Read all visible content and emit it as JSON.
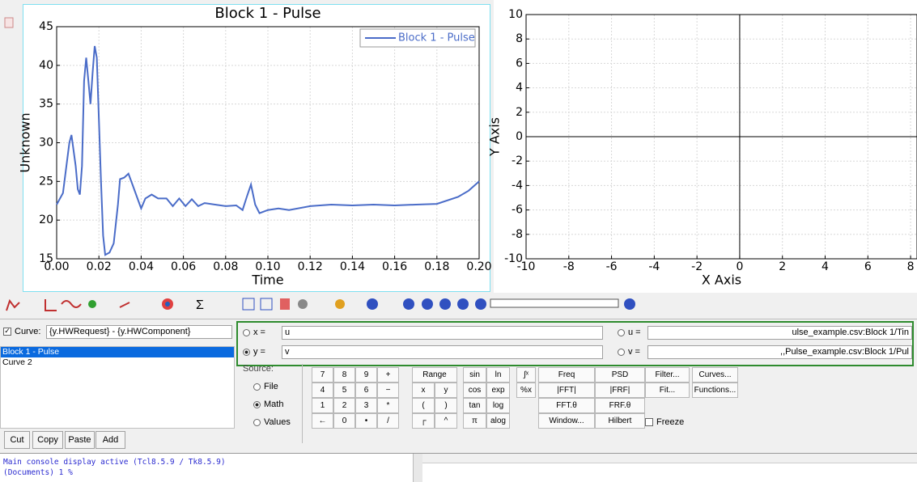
{
  "charts": [
    {
      "type": "line",
      "title": "Block 1 - Pulse",
      "x_label": "Time",
      "y_label": "Unknown",
      "x": [
        0,
        0.003,
        0.006,
        0.007,
        0.009,
        0.01,
        0.011,
        0.012,
        0.013,
        0.014,
        0.015,
        0.016,
        0.017,
        0.018,
        0.019,
        0.02,
        0.021,
        0.022,
        0.023,
        0.025,
        0.027,
        0.029,
        0.03,
        0.032,
        0.034,
        0.036,
        0.038,
        0.04,
        0.042,
        0.045,
        0.048,
        0.052,
        0.055,
        0.058,
        0.061,
        0.064,
        0.067,
        0.07,
        0.075,
        0.08,
        0.085,
        0.088,
        0.09,
        0.092,
        0.094,
        0.096,
        0.1,
        0.105,
        0.11,
        0.12,
        0.13,
        0.14,
        0.15,
        0.16,
        0.17,
        0.18,
        0.19,
        0.195,
        0.2
      ],
      "series": [
        {
          "name": "Block 1 - Pulse",
          "color": "#4a6cc8",
          "values": [
            22,
            23.5,
            30,
            31,
            27,
            24,
            23.3,
            27,
            38,
            41,
            38,
            35,
            39,
            42.5,
            41,
            33,
            25,
            18,
            15.5,
            15.8,
            17,
            22,
            25.3,
            25.5,
            26,
            24.5,
            23,
            21.5,
            22.8,
            23.3,
            22.8,
            22.8,
            21.8,
            22.8,
            21.8,
            22.7,
            21.8,
            22.2,
            22.0,
            21.8,
            21.9,
            21.3,
            23,
            24.6,
            22,
            20.9,
            21.3,
            21.5,
            21.3,
            21.8,
            22.0,
            21.9,
            22,
            21.9,
            22,
            22.1,
            23,
            23.8,
            25
          ]
        }
      ],
      "xlim": [
        0,
        0.2
      ],
      "ylim": [
        15,
        45
      ],
      "xticks": [
        {
          "value": 0,
          "label": "0.00"
        },
        {
          "value": 0.02,
          "label": "0.02"
        },
        {
          "value": 0.04,
          "label": "0.04"
        },
        {
          "value": 0.06,
          "label": "0.06"
        },
        {
          "value": 0.08,
          "label": "0.08"
        },
        {
          "value": 0.1,
          "label": "0.10"
        },
        {
          "value": 0.12,
          "label": "0.12"
        },
        {
          "value": 0.14,
          "label": "0.14"
        },
        {
          "value": 0.16,
          "label": "0.16"
        },
        {
          "value": 0.18,
          "label": "0.18"
        },
        {
          "value": 0.2,
          "label": "0.20"
        }
      ],
      "yticks": [
        15,
        20,
        25,
        30,
        35,
        40,
        45
      ],
      "grid": true,
      "legend": "upper right"
    },
    {
      "type": "line",
      "x_label": "X Axis",
      "y_label": "Y Axis",
      "series": [],
      "xlim": [
        -10,
        8.3
      ],
      "ylim": [
        -10,
        10
      ],
      "xticks": [
        -10,
        -8,
        -6,
        -4,
        -2,
        0,
        2,
        4,
        6,
        8
      ],
      "yticks": [
        -10,
        -8,
        -6,
        -4,
        -2,
        0,
        2,
        4,
        6,
        8,
        10
      ],
      "grid": true,
      "origin_axes": true
    }
  ],
  "left_panel": {
    "curve_label": "Curve:",
    "curve_expression": "{y.HWRequest} - {y.HWComponent}",
    "curves": [
      "Block 1 - Pulse",
      "Curve 2"
    ],
    "selected_curve": 0,
    "buttons": [
      "Cut",
      "Copy",
      "Paste",
      "Add"
    ]
  },
  "expressions": {
    "x_label": "x =",
    "x_value": "u",
    "y_label": "y =",
    "y_value": "v",
    "u_label": "u =",
    "u_value": "ulse_example.csv:Block 1/Tin",
    "v_label": "v =",
    "v_value": ",,Pulse_example.csv:Block 1/Pul"
  },
  "source": {
    "label": "Source:",
    "options": [
      "File",
      "Math",
      "Values"
    ],
    "selected": 1
  },
  "keypad": [
    [
      "7",
      "8",
      "9",
      "+",
      "Range",
      "sin",
      "ln",
      "∫ˣ",
      "Freq",
      "PSD",
      "Filter...",
      "Curves..."
    ],
    [
      "4",
      "5",
      "6",
      "−",
      "x",
      "y",
      "cos",
      "exp",
      "%x",
      "|FFT|",
      "|FRF|",
      "Fit...",
      "Functions..."
    ],
    [
      "1",
      "2",
      "3",
      "*",
      "(",
      ")",
      "tan",
      "log",
      "FFT.θ",
      "FRF.θ"
    ],
    [
      "←",
      "0",
      "•",
      "/",
      "┌",
      "^",
      "π",
      "alog",
      "Window...",
      "Hilbert"
    ]
  ],
  "freeze": "Freeze",
  "console": [
    "Main console display active (Tcl8.5.9 / Tk8.5.9)",
    "(Documents) 1 %"
  ]
}
